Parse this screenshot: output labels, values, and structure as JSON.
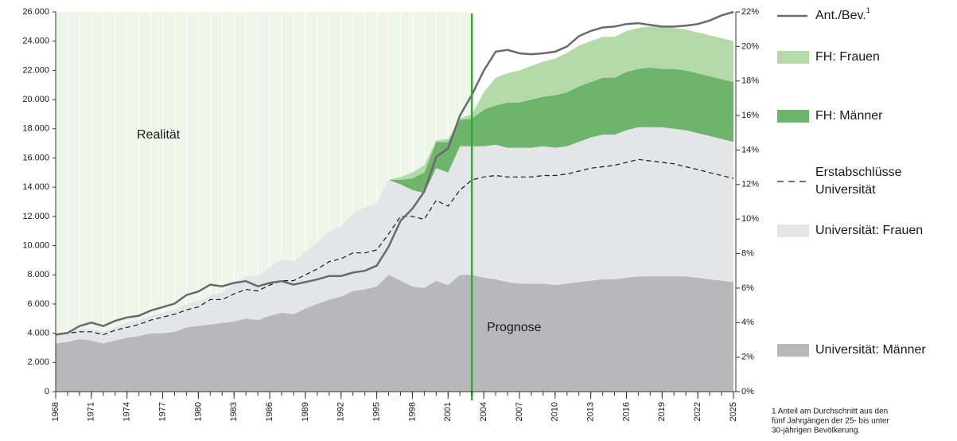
{
  "chart_data": {
    "type": "area",
    "x": [
      1968,
      1969,
      1970,
      1971,
      1972,
      1973,
      1974,
      1975,
      1976,
      1977,
      1978,
      1979,
      1980,
      1981,
      1982,
      1983,
      1984,
      1985,
      1986,
      1987,
      1988,
      1989,
      1990,
      1991,
      1992,
      1993,
      1994,
      1995,
      1996,
      1997,
      1998,
      1999,
      2000,
      2001,
      2002,
      2003,
      2004,
      2005,
      2006,
      2007,
      2008,
      2009,
      2010,
      2011,
      2012,
      2013,
      2014,
      2015,
      2016,
      2017,
      2018,
      2019,
      2020,
      2021,
      2022,
      2023,
      2024,
      2025
    ],
    "xlim": [
      1968,
      2025
    ],
    "xticks": [
      1968,
      1971,
      1974,
      1977,
      1980,
      1983,
      1986,
      1989,
      1992,
      1995,
      1998,
      2001,
      2004,
      2007,
      2010,
      2013,
      2016,
      2019,
      2022,
      2025
    ],
    "ylim": [
      0,
      26000
    ],
    "yticks": [
      0,
      {
        "value": 2000,
        "label": "2.000"
      },
      {
        "value": 4000,
        "label": "4.000"
      },
      {
        "value": 6000,
        "label": "6.000"
      },
      {
        "value": 8000,
        "label": "8.000"
      },
      {
        "value": 10000,
        "label": "10.000"
      },
      {
        "value": 12000,
        "label": "12.000"
      },
      {
        "value": 14000,
        "label": "14.000"
      },
      {
        "value": 16000,
        "label": "16.000"
      },
      {
        "value": 18000,
        "label": "18.000"
      },
      {
        "value": 20000,
        "label": "20.000"
      },
      {
        "value": 22000,
        "label": "22.000"
      },
      {
        "value": 24000,
        "label": "24.000"
      },
      {
        "value": 26000,
        "label": "26.000"
      }
    ],
    "y2lim": [
      0,
      22
    ],
    "y2ticks": [
      {
        "value": 0,
        "label": "0%"
      },
      {
        "value": 2,
        "label": "2%"
      },
      {
        "value": 4,
        "label": "4%"
      },
      {
        "value": 6,
        "label": "6%"
      },
      {
        "value": 8,
        "label": "8%"
      },
      {
        "value": 10,
        "label": "10%"
      },
      {
        "value": 12,
        "label": "12%"
      },
      {
        "value": 14,
        "label": "14%"
      },
      {
        "value": 16,
        "label": "16%"
      },
      {
        "value": 18,
        "label": "18%"
      },
      {
        "value": 20,
        "label": "20%"
      },
      {
        "value": 22,
        "label": "22%"
      }
    ],
    "series": [
      {
        "name": "Universität: Männer",
        "type": "area",
        "color": "#b8b8ba",
        "values": [
          3300,
          3400,
          3600,
          3500,
          3300,
          3500,
          3700,
          3800,
          4000,
          4000,
          4100,
          4400,
          4500,
          4600,
          4700,
          4800,
          5000,
          4900,
          5200,
          5400,
          5300,
          5700,
          6000,
          6300,
          6500,
          6900,
          7000,
          7200,
          8000,
          7600,
          7200,
          7100,
          7600,
          7300,
          8000,
          8000,
          7800,
          7700,
          7500,
          7400,
          7400,
          7400,
          7300,
          7400,
          7500,
          7600,
          7700,
          7700,
          7800,
          7900,
          7900,
          7900,
          7900,
          7900,
          7800,
          7700,
          7600,
          7500
        ]
      },
      {
        "name": "Universität: Frauen",
        "type": "area",
        "color": "#e4e5e7",
        "values": [
          700,
          700,
          700,
          800,
          800,
          900,
          1000,
          1100,
          1200,
          1400,
          1500,
          1600,
          1700,
          2000,
          2100,
          2600,
          2900,
          3000,
          3300,
          3700,
          3600,
          3900,
          4200,
          4700,
          4800,
          5300,
          5600,
          5700,
          6500,
          6600,
          6600,
          6500,
          7700,
          7700,
          8800,
          8800,
          9000,
          9200,
          9200,
          9300,
          9300,
          9400,
          9400,
          9400,
          9600,
          9800,
          9900,
          9900,
          10100,
          10200,
          10200,
          10200,
          10100,
          10000,
          9900,
          9800,
          9700,
          9600
        ]
      },
      {
        "name": "FH: Männer",
        "type": "area",
        "color": "#6eb56c",
        "values": [
          null,
          null,
          null,
          null,
          null,
          null,
          null,
          null,
          null,
          null,
          null,
          null,
          null,
          null,
          null,
          null,
          null,
          null,
          null,
          null,
          null,
          null,
          null,
          null,
          null,
          null,
          null,
          null,
          0,
          300,
          800,
          1400,
          1800,
          2100,
          1800,
          1900,
          2500,
          2700,
          3100,
          3100,
          3300,
          3400,
          3600,
          3700,
          3800,
          3800,
          3900,
          3900,
          4000,
          4000,
          4100,
          4000,
          4100,
          4100,
          4100,
          4100,
          4100,
          4100
        ]
      },
      {
        "name": "FH: Frauen",
        "type": "area",
        "color": "#b6d9a9",
        "values": [
          null,
          null,
          null,
          null,
          null,
          null,
          null,
          null,
          null,
          null,
          null,
          null,
          null,
          null,
          null,
          null,
          null,
          null,
          null,
          null,
          null,
          null,
          null,
          null,
          null,
          null,
          null,
          null,
          0,
          200,
          400,
          500,
          100,
          200,
          100,
          300,
          1200,
          1900,
          2000,
          2200,
          2300,
          2400,
          2500,
          2700,
          2800,
          2800,
          2800,
          2800,
          2800,
          2800,
          2800,
          2900,
          2800,
          2800,
          2800,
          2800,
          2800,
          2800
        ]
      },
      {
        "name": "Erstabschlüsse Universität",
        "type": "line",
        "dashed": true,
        "color": "#1a1a1a",
        "values": [
          3900,
          4000,
          4100,
          4100,
          3900,
          4200,
          4400,
          4600,
          4900,
          5100,
          5300,
          5600,
          5800,
          6300,
          6300,
          6700,
          7000,
          6900,
          7300,
          7600,
          7600,
          8000,
          8400,
          8900,
          9100,
          9500,
          9500,
          9700,
          10800,
          12000,
          12000,
          11800,
          13100,
          12700,
          13800,
          14500,
          14700,
          14800,
          14700,
          14700,
          14700,
          14800,
          14800,
          14900,
          15100,
          15300,
          15400,
          15500,
          15700,
          15900,
          15800,
          15700,
          15600,
          15400,
          15200,
          15000,
          14800,
          14600
        ]
      },
      {
        "name": "Ant./Bev.",
        "type": "line",
        "axis": "y2",
        "color": "#6a6a6c",
        "values": [
          3.3,
          3.4,
          3.8,
          4.0,
          3.8,
          4.1,
          4.3,
          4.4,
          4.7,
          4.9,
          5.1,
          5.6,
          5.8,
          6.2,
          6.1,
          6.3,
          6.4,
          6.1,
          6.3,
          6.4,
          6.2,
          6.35,
          6.5,
          6.7,
          6.7,
          6.9,
          7.0,
          7.3,
          8.4,
          9.9,
          10.6,
          11.6,
          13.6,
          14.1,
          16.0,
          17.2,
          18.6,
          19.7,
          19.8,
          19.6,
          19.55,
          19.6,
          19.7,
          20.0,
          20.6,
          20.9,
          21.1,
          21.15,
          21.3,
          21.35,
          21.25,
          21.15,
          21.15,
          21.2,
          21.3,
          21.5,
          21.8,
          22.0
        ]
      }
    ],
    "legend_footnote_marker": "1",
    "forecast_start": 2003,
    "annotations": [
      "Realität",
      "Prognose"
    ],
    "footnote_lines": [
      "1 Anteil am Durchschnitt aus den",
      "fünf Jahrgängen der 25- bis unter",
      "30-jährigen Bevölkerung."
    ]
  }
}
